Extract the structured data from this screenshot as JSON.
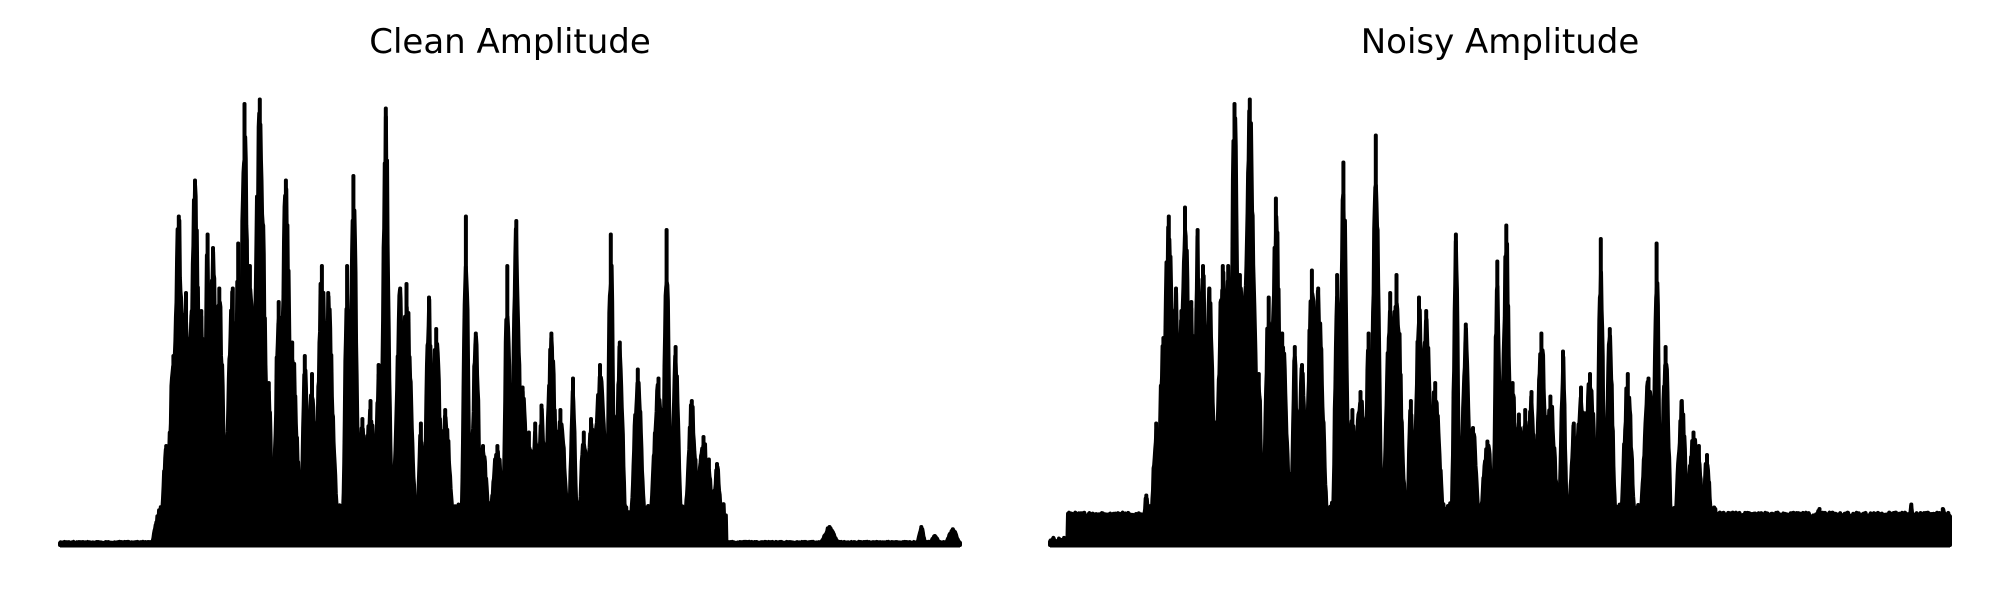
{
  "chart_data": [
    {
      "type": "line",
      "title": "Clean Amplitude",
      "xlabel": "",
      "ylabel": "",
      "axes_visible": false,
      "grid": false,
      "color": "#000000",
      "ylim": [
        0,
        1.0
      ],
      "baseline": 0.004,
      "noise_floor": 0.003,
      "sample_count": 1600,
      "peaks": [
        {
          "x": 0.107,
          "y": 0.05
        },
        {
          "x": 0.118,
          "y": 0.22
        },
        {
          "x": 0.126,
          "y": 0.42
        },
        {
          "x": 0.132,
          "y": 0.73
        },
        {
          "x": 0.14,
          "y": 0.56
        },
        {
          "x": 0.146,
          "y": 0.51
        },
        {
          "x": 0.15,
          "y": 0.81
        },
        {
          "x": 0.157,
          "y": 0.52
        },
        {
          "x": 0.164,
          "y": 0.69
        },
        {
          "x": 0.17,
          "y": 0.66
        },
        {
          "x": 0.177,
          "y": 0.57
        },
        {
          "x": 0.192,
          "y": 0.57
        },
        {
          "x": 0.198,
          "y": 0.67
        },
        {
          "x": 0.205,
          "y": 0.98
        },
        {
          "x": 0.211,
          "y": 0.62
        },
        {
          "x": 0.222,
          "y": 0.99
        },
        {
          "x": 0.232,
          "y": 0.36
        },
        {
          "x": 0.243,
          "y": 0.54
        },
        {
          "x": 0.251,
          "y": 0.81
        },
        {
          "x": 0.258,
          "y": 0.45
        },
        {
          "x": 0.272,
          "y": 0.42
        },
        {
          "x": 0.28,
          "y": 0.38
        },
        {
          "x": 0.291,
          "y": 0.62
        },
        {
          "x": 0.298,
          "y": 0.56
        },
        {
          "x": 0.319,
          "y": 0.62
        },
        {
          "x": 0.326,
          "y": 0.82
        },
        {
          "x": 0.336,
          "y": 0.28
        },
        {
          "x": 0.345,
          "y": 0.32
        },
        {
          "x": 0.354,
          "y": 0.4
        },
        {
          "x": 0.362,
          "y": 0.97
        },
        {
          "x": 0.378,
          "y": 0.57
        },
        {
          "x": 0.385,
          "y": 0.58
        },
        {
          "x": 0.401,
          "y": 0.27
        },
        {
          "x": 0.41,
          "y": 0.55
        },
        {
          "x": 0.418,
          "y": 0.48
        },
        {
          "x": 0.428,
          "y": 0.3
        },
        {
          "x": 0.451,
          "y": 0.73
        },
        {
          "x": 0.462,
          "y": 0.47
        },
        {
          "x": 0.47,
          "y": 0.22
        },
        {
          "x": 0.486,
          "y": 0.22
        },
        {
          "x": 0.497,
          "y": 0.62
        },
        {
          "x": 0.507,
          "y": 0.72
        },
        {
          "x": 0.514,
          "y": 0.35
        },
        {
          "x": 0.521,
          "y": 0.25
        },
        {
          "x": 0.528,
          "y": 0.27
        },
        {
          "x": 0.535,
          "y": 0.31
        },
        {
          "x": 0.546,
          "y": 0.47
        },
        {
          "x": 0.556,
          "y": 0.3
        },
        {
          "x": 0.57,
          "y": 0.37
        },
        {
          "x": 0.582,
          "y": 0.25
        },
        {
          "x": 0.59,
          "y": 0.28
        },
        {
          "x": 0.6,
          "y": 0.4
        },
        {
          "x": 0.612,
          "y": 0.69
        },
        {
          "x": 0.622,
          "y": 0.45
        },
        {
          "x": 0.642,
          "y": 0.39
        },
        {
          "x": 0.665,
          "y": 0.37
        },
        {
          "x": 0.674,
          "y": 0.7
        },
        {
          "x": 0.684,
          "y": 0.44
        },
        {
          "x": 0.702,
          "y": 0.32
        },
        {
          "x": 0.715,
          "y": 0.24
        },
        {
          "x": 0.721,
          "y": 0.19
        },
        {
          "x": 0.73,
          "y": 0.18
        },
        {
          "x": 0.748,
          "y": 0.005
        },
        {
          "x": 0.855,
          "y": 0.04
        },
        {
          "x": 0.957,
          "y": 0.04
        },
        {
          "x": 0.972,
          "y": 0.02
        },
        {
          "x": 0.992,
          "y": 0.035
        }
      ]
    },
    {
      "type": "line",
      "title": "Noisy Amplitude",
      "xlabel": "",
      "ylabel": "",
      "axes_visible": false,
      "grid": false,
      "color": "#000000",
      "ylim": [
        0,
        1.0
      ],
      "baseline": 0.06,
      "noise_floor": 0.012,
      "sample_count": 1600,
      "peaks": [
        {
          "x": 0.107,
          "y": 0.11
        },
        {
          "x": 0.118,
          "y": 0.27
        },
        {
          "x": 0.126,
          "y": 0.46
        },
        {
          "x": 0.132,
          "y": 0.73
        },
        {
          "x": 0.14,
          "y": 0.57
        },
        {
          "x": 0.146,
          "y": 0.52
        },
        {
          "x": 0.15,
          "y": 0.75
        },
        {
          "x": 0.157,
          "y": 0.54
        },
        {
          "x": 0.164,
          "y": 0.7
        },
        {
          "x": 0.17,
          "y": 0.62
        },
        {
          "x": 0.177,
          "y": 0.57
        },
        {
          "x": 0.192,
          "y": 0.62
        },
        {
          "x": 0.198,
          "y": 0.62
        },
        {
          "x": 0.205,
          "y": 0.98
        },
        {
          "x": 0.211,
          "y": 0.6
        },
        {
          "x": 0.222,
          "y": 0.99
        },
        {
          "x": 0.232,
          "y": 0.38
        },
        {
          "x": 0.243,
          "y": 0.55
        },
        {
          "x": 0.251,
          "y": 0.77
        },
        {
          "x": 0.258,
          "y": 0.47
        },
        {
          "x": 0.272,
          "y": 0.44
        },
        {
          "x": 0.28,
          "y": 0.4
        },
        {
          "x": 0.291,
          "y": 0.61
        },
        {
          "x": 0.298,
          "y": 0.57
        },
        {
          "x": 0.319,
          "y": 0.6
        },
        {
          "x": 0.326,
          "y": 0.85
        },
        {
          "x": 0.336,
          "y": 0.3
        },
        {
          "x": 0.345,
          "y": 0.34
        },
        {
          "x": 0.354,
          "y": 0.47
        },
        {
          "x": 0.362,
          "y": 0.91
        },
        {
          "x": 0.378,
          "y": 0.56
        },
        {
          "x": 0.385,
          "y": 0.6
        },
        {
          "x": 0.401,
          "y": 0.32
        },
        {
          "x": 0.41,
          "y": 0.55
        },
        {
          "x": 0.418,
          "y": 0.52
        },
        {
          "x": 0.428,
          "y": 0.36
        },
        {
          "x": 0.451,
          "y": 0.69
        },
        {
          "x": 0.462,
          "y": 0.49
        },
        {
          "x": 0.47,
          "y": 0.26
        },
        {
          "x": 0.486,
          "y": 0.23
        },
        {
          "x": 0.497,
          "y": 0.63
        },
        {
          "x": 0.507,
          "y": 0.71
        },
        {
          "x": 0.514,
          "y": 0.36
        },
        {
          "x": 0.521,
          "y": 0.29
        },
        {
          "x": 0.528,
          "y": 0.3
        },
        {
          "x": 0.535,
          "y": 0.34
        },
        {
          "x": 0.546,
          "y": 0.47
        },
        {
          "x": 0.556,
          "y": 0.33
        },
        {
          "x": 0.57,
          "y": 0.43
        },
        {
          "x": 0.582,
          "y": 0.27
        },
        {
          "x": 0.59,
          "y": 0.35
        },
        {
          "x": 0.6,
          "y": 0.38
        },
        {
          "x": 0.612,
          "y": 0.68
        },
        {
          "x": 0.622,
          "y": 0.48
        },
        {
          "x": 0.642,
          "y": 0.38
        },
        {
          "x": 0.665,
          "y": 0.37
        },
        {
          "x": 0.674,
          "y": 0.67
        },
        {
          "x": 0.684,
          "y": 0.44
        },
        {
          "x": 0.702,
          "y": 0.32
        },
        {
          "x": 0.715,
          "y": 0.25
        },
        {
          "x": 0.721,
          "y": 0.22
        },
        {
          "x": 0.73,
          "y": 0.2
        },
        {
          "x": 0.748,
          "y": 0.065
        },
        {
          "x": 0.855,
          "y": 0.08
        },
        {
          "x": 0.957,
          "y": 0.09
        },
        {
          "x": 0.972,
          "y": 0.07
        },
        {
          "x": 0.992,
          "y": 0.08
        }
      ]
    }
  ]
}
